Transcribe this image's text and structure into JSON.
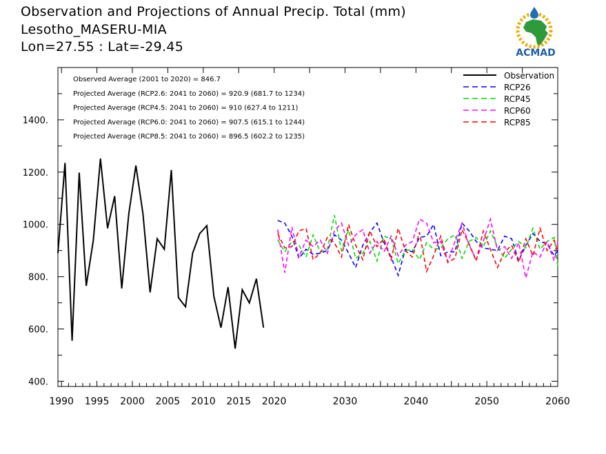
{
  "header": {
    "title_line1": "Observation and Projections of Annual Precip. Total (mm)",
    "title_line2": "Lesotho_MASERU-MIA",
    "title_line3": "Lon=27.55 : Lat=-29.45"
  },
  "logo": {
    "text": "ACMAD",
    "colors": {
      "africa": "#2e9a3c",
      "drop": "#1e6fb8",
      "sun": "#f2a900",
      "text": "#1e5fa8"
    }
  },
  "chart_data": {
    "type": "line",
    "xlim": [
      1989.5,
      2060
    ],
    "ylim": [
      380,
      1600
    ],
    "x_ticks": [
      1990,
      1995,
      2000,
      2005,
      2010,
      2015,
      2020,
      2030,
      2040,
      2050,
      2060
    ],
    "y_ticks": [
      400,
      600,
      800,
      1000,
      1200,
      1400
    ],
    "y_tick_labels": [
      "400.",
      "600.",
      "800.",
      "1000.",
      "1200.",
      "1400."
    ],
    "annotations": [
      "Observed Average (2001 to 2020) = 846.7",
      "Projected Average (RCP2.6: 2041 to 2060) = 920.9 (681.7 to 1234)",
      "Projected Average (RCP4.5: 2041 to 2060) = 910 (627.4 to 1211)",
      "Projected Average (RCP6.0: 2041 to 2060) = 907.5 (615.1 to 1244)",
      "Projected Average (RCP8.5: 2041 to 2060) = 896.5 (602.2 to 1235)"
    ],
    "legend_position": "top-right",
    "series": [
      {
        "name": "Observation",
        "color": "#000000",
        "dashed": false,
        "x": [
          1989.5,
          1990.5,
          1991.5,
          1992.5,
          1993.5,
          1994.5,
          1995.5,
          1996.5,
          1997.5,
          1998.5,
          1999.5,
          2000.5,
          2001.5,
          2002.5,
          2003.5,
          2004.5,
          2005.5,
          2006.5,
          2007.5,
          2008.5,
          2009.5,
          2010.5,
          2011.5,
          2012.5,
          2013.5,
          2014.5,
          2015.5,
          2016.5,
          2017.5,
          2018.5,
          2019.5,
          2020.5
        ],
        "values": [
          890,
          1235,
          555,
          1198,
          765,
          940,
          1252,
          985,
          1108,
          755,
          1040,
          1225,
          1040,
          740,
          945,
          905,
          1208,
          720,
          685,
          890,
          965,
          995,
          725,
          605,
          760,
          525,
          750,
          700,
          792,
          605,
          null,
          null
        ]
      },
      {
        "name": "RCP26",
        "color": "#0000ff",
        "dashed": true,
        "x": [
          2020.5,
          2021.5,
          2022.5,
          2023.5,
          2024.5,
          2025.5,
          2026.5,
          2027.5,
          2028.5,
          2029.5,
          2030.5,
          2031.5,
          2032.5,
          2033.5,
          2034.5,
          2035.5,
          2036.5,
          2037.5,
          2038.5,
          2039.5,
          2040.5,
          2041.5,
          2042.5,
          2043.5,
          2044.5,
          2045.5,
          2046.5,
          2047.5,
          2048.5,
          2049.5,
          2050.5,
          2051.5,
          2052.5,
          2053.5,
          2054.5,
          2055.5,
          2056.5,
          2057.5,
          2058.5,
          2059.5,
          2060
        ],
        "values": [
          1015,
          1005,
          955,
          870,
          905,
          885,
          890,
          900,
          960,
          940,
          890,
          835,
          920,
          970,
          1005,
          930,
          875,
          805,
          905,
          895,
          950,
          955,
          1000,
          880,
          895,
          895,
          1005,
          975,
          935,
          910,
          905,
          900,
          955,
          945,
          860,
          920,
          965,
          935,
          925,
          880,
          900
        ]
      },
      {
        "name": "RCP45",
        "color": "#00dd00",
        "dashed": true,
        "x": [
          2020.5,
          2021.5,
          2022.5,
          2023.5,
          2024.5,
          2025.5,
          2026.5,
          2027.5,
          2028.5,
          2029.5,
          2030.5,
          2031.5,
          2032.5,
          2033.5,
          2034.5,
          2035.5,
          2036.5,
          2037.5,
          2038.5,
          2039.5,
          2040.5,
          2041.5,
          2042.5,
          2043.5,
          2044.5,
          2045.5,
          2046.5,
          2047.5,
          2048.5,
          2049.5,
          2050.5,
          2051.5,
          2052.5,
          2053.5,
          2054.5,
          2055.5,
          2056.5,
          2057.5,
          2058.5,
          2059.5,
          2060
        ],
        "values": [
          940,
          895,
          935,
          920,
          875,
          960,
          895,
          905,
          1035,
          900,
          980,
          870,
          890,
          935,
          860,
          955,
          945,
          850,
          900,
          905,
          865,
          930,
          905,
          910,
          945,
          960,
          870,
          935,
          950,
          915,
          975,
          915,
          870,
          905,
          935,
          910,
          985,
          905,
          935,
          950,
          840
        ]
      },
      {
        "name": "RCP60",
        "color": "#ff00ff",
        "dashed": true,
        "x": [
          2020.5,
          2021.5,
          2022.5,
          2023.5,
          2024.5,
          2025.5,
          2026.5,
          2027.5,
          2028.5,
          2029.5,
          2030.5,
          2031.5,
          2032.5,
          2033.5,
          2034.5,
          2035.5,
          2036.5,
          2037.5,
          2038.5,
          2039.5,
          2040.5,
          2041.5,
          2042.5,
          2043.5,
          2044.5,
          2045.5,
          2046.5,
          2047.5,
          2048.5,
          2049.5,
          2050.5,
          2051.5,
          2052.5,
          2053.5,
          2054.5,
          2055.5,
          2056.5,
          2057.5,
          2058.5,
          2059.5,
          2060
        ],
        "values": [
          980,
          815,
          990,
          875,
          940,
          915,
          940,
          890,
          975,
          1005,
          920,
          960,
          980,
          890,
          935,
          895,
          955,
          880,
          920,
          935,
          1020,
          1005,
          930,
          935,
          855,
          935,
          1005,
          920,
          865,
          935,
          1020,
          900,
          915,
          870,
          930,
          795,
          895,
          875,
          935,
          860,
          935
        ]
      },
      {
        "name": "RCP85",
        "color": "#ff0000",
        "dashed": true,
        "x": [
          2020.5,
          2021.5,
          2022.5,
          2023.5,
          2024.5,
          2025.5,
          2026.5,
          2027.5,
          2028.5,
          2029.5,
          2030.5,
          2031.5,
          2032.5,
          2033.5,
          2034.5,
          2035.5,
          2036.5,
          2037.5,
          2038.5,
          2039.5,
          2040.5,
          2041.5,
          2042.5,
          2043.5,
          2044.5,
          2045.5,
          2046.5,
          2047.5,
          2048.5,
          2049.5,
          2050.5,
          2051.5,
          2052.5,
          2053.5,
          2054.5,
          2055.5,
          2056.5,
          2057.5,
          2058.5,
          2059.5,
          2060
        ],
        "values": [
          965,
          910,
          915,
          975,
          985,
          865,
          890,
          950,
          930,
          875,
          1000,
          920,
          865,
          975,
          915,
          945,
          865,
          985,
          900,
          875,
          970,
          820,
          880,
          955,
          855,
          870,
          980,
          925,
          860,
          975,
          905,
          835,
          895,
          920,
          855,
          945,
          880,
          985,
          900,
          940,
          895
        ]
      }
    ]
  }
}
